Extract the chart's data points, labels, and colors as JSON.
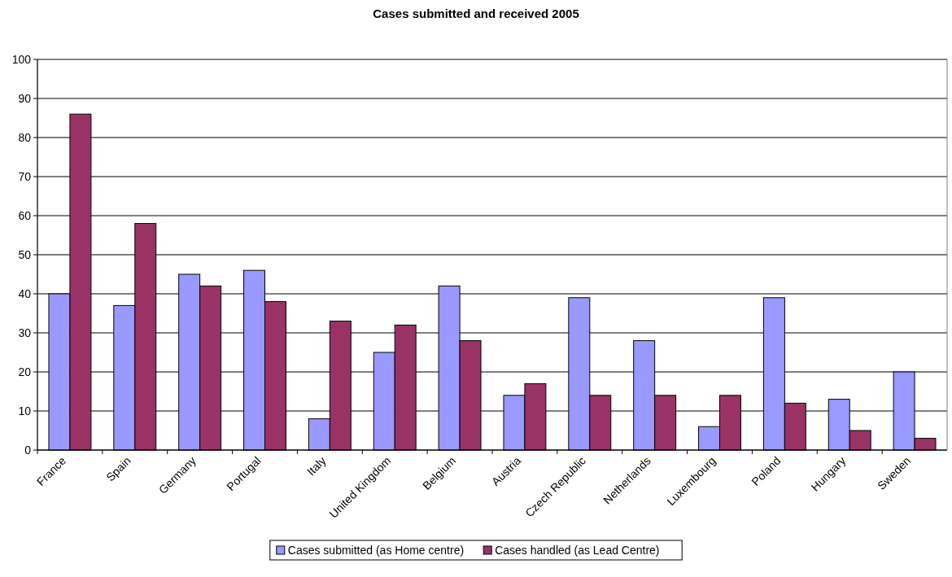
{
  "chart_data": {
    "type": "bar",
    "title": "Cases submitted and received 2005",
    "categories": [
      "France",
      "Spain",
      "Germany",
      "Portugal",
      "Italy",
      "United Kingdom",
      "Belgium",
      "Austria",
      "Czech Republic",
      "Netherlands",
      "Luxembourg",
      "Poland",
      "Hungary",
      "Sweden"
    ],
    "series": [
      {
        "name": "Cases submitted (as Home centre)",
        "color": "#9999ff",
        "values": [
          40,
          37,
          45,
          46,
          8,
          25,
          42,
          14,
          39,
          28,
          6,
          39,
          13,
          20
        ]
      },
      {
        "name": "Cases handled (as Lead Centre)",
        "color": "#993366",
        "values": [
          86,
          58,
          42,
          38,
          33,
          32,
          28,
          17,
          14,
          14,
          14,
          12,
          5,
          3
        ]
      }
    ],
    "ylim": [
      0,
      100
    ],
    "yticks": [
      0,
      10,
      20,
      30,
      40,
      50,
      60,
      70,
      80,
      90,
      100
    ],
    "grid": "y",
    "legend": "bottom"
  }
}
